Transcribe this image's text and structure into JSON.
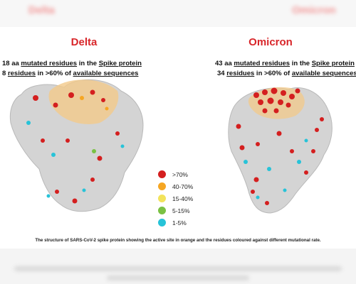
{
  "header": {
    "blurred_left": "Delta",
    "blurred_right": "Omicron"
  },
  "delta": {
    "title": "Delta",
    "line1_pre": "18 aa ",
    "line1_u1": "mutated residues",
    "line1_mid": " in the ",
    "line1_u2": "Spike protein",
    "line2_pre": "8 ",
    "line2_u1": "residues",
    "line2_mid": " in >60% of ",
    "line2_u2": "available sequences"
  },
  "omicron": {
    "title": "Omicron",
    "line1_pre": "43 aa ",
    "line1_u1": "mutated residues",
    "line1_mid": " in the ",
    "line1_u2": "Spike protein",
    "line2_pre": "34 ",
    "line2_u1": "residues",
    "line2_mid": " in >60% of ",
    "line2_u2": "available sequences"
  },
  "legend": [
    {
      "label": ">70%",
      "color": "#d41f1f"
    },
    {
      "label": "40-70%",
      "color": "#f5a623"
    },
    {
      "label": "15-40%",
      "color": "#f2e35b"
    },
    {
      "label": "5-15%",
      "color": "#7ac143"
    },
    {
      "label": "1-5%",
      "color": "#27c3d8"
    }
  ],
  "caption": "The structure of SARS-CoV-2 spike protein showing the active site in orange and the residues coloured against different mutational rate.",
  "colors": {
    "active_site": "#f3c98a",
    "protein": "#cfcfcf",
    "title": "#d8262a"
  }
}
